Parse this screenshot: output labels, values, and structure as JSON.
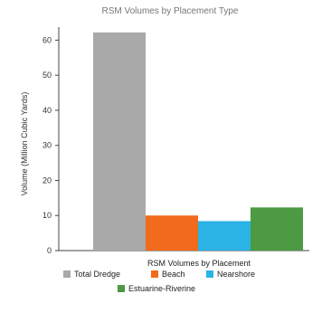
{
  "chart_data": {
    "type": "bar",
    "title": "RSM Volumes by Placement Type",
    "xlabel": "RSM Volumes by Placement",
    "ylabel": "Volume (Million Cubic Yards)",
    "ylim": [
      0,
      65
    ],
    "yticks": [
      0,
      10,
      20,
      30,
      40,
      50,
      60
    ],
    "grid": false,
    "legend_position": "bottom",
    "series": [
      {
        "name": "Total Dredge",
        "values": [
          62.2
        ],
        "color": "#a9a9a9"
      },
      {
        "name": "Beach",
        "values": [
          10.0
        ],
        "color": "#f26a1b"
      },
      {
        "name": "Nearshore",
        "values": [
          8.4
        ],
        "color": "#2bb3e6"
      },
      {
        "name": "Estuarine-Riverine",
        "values": [
          12.3
        ],
        "color": "#4c9a43"
      }
    ]
  }
}
